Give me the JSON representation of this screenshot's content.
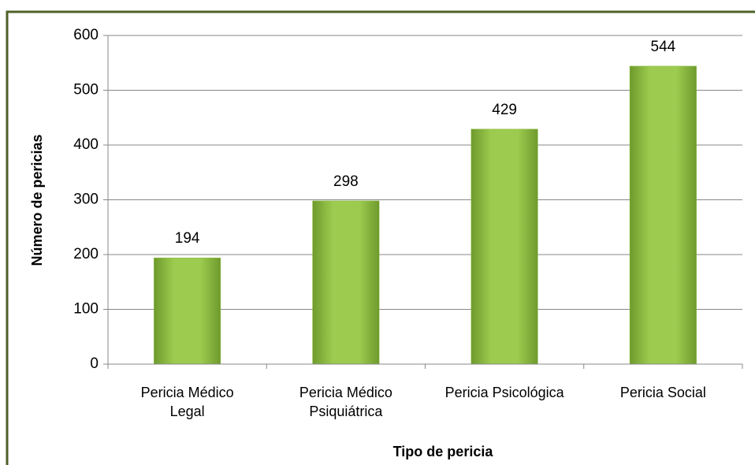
{
  "chart_data": {
    "type": "bar",
    "categories": [
      "Pericia Médico Legal",
      "Pericia Médico Psiquiátrica",
      "Pericia Psicológica",
      "Pericia Social"
    ],
    "values": [
      194,
      298,
      429,
      544
    ],
    "color": "#8cba3f",
    "xlabel": "Tipo de pericia",
    "ylabel": "Número de pericias",
    "ylim": [
      0,
      600
    ],
    "yticks": [
      0,
      100,
      200,
      300,
      400,
      500,
      600
    ],
    "grid": true
  }
}
